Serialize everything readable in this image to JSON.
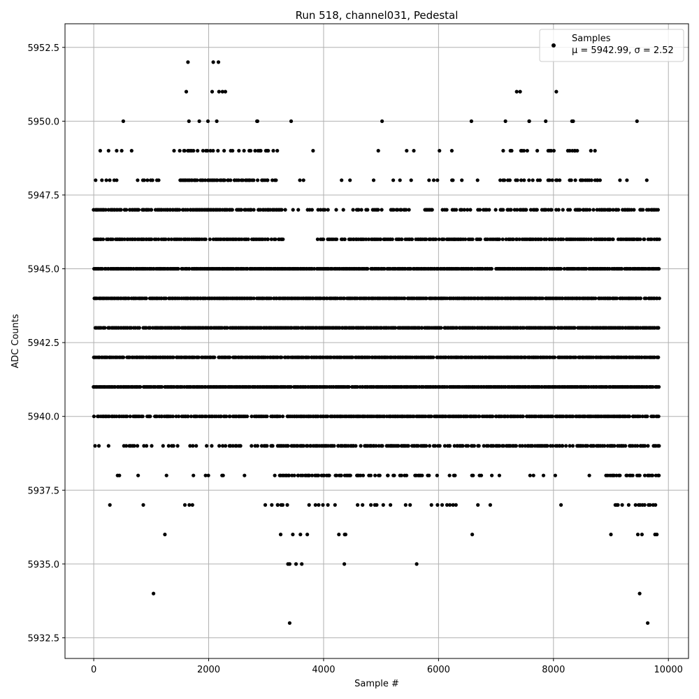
{
  "chart_data": {
    "type": "scatter",
    "title": "Run 518, channel031, Pedestal",
    "xlabel": "Sample #",
    "ylabel": "ADC Counts",
    "xlim": [
      -500,
      10350
    ],
    "ylim": [
      5931.8,
      5953.3
    ],
    "xticks": [
      0,
      2000,
      4000,
      6000,
      8000,
      10000
    ],
    "xtick_labels": [
      "0",
      "2000",
      "4000",
      "6000",
      "8000",
      "10000"
    ],
    "yticks": [
      5932.5,
      5935.0,
      5937.5,
      5940.0,
      5942.5,
      5945.0,
      5947.5,
      5950.0,
      5952.5
    ],
    "ytick_labels": [
      "5932.5",
      "5935.0",
      "5937.5",
      "5940.0",
      "5942.5",
      "5945.0",
      "5947.5",
      "5950.0",
      "5952.5"
    ],
    "grid": true,
    "legend_position": "top-right",
    "marker_color": "#000000",
    "series": [
      {
        "name": "Samples",
        "stats_label": "μ = 5942.99, σ = 2.52",
        "x_range": [
          0,
          9850
        ],
        "y_levels": [
          5944,
          5943,
          5942,
          5941,
          5945,
          5940,
          5946,
          5939,
          5947,
          5938,
          5948,
          5937,
          5949,
          5936,
          5950,
          5935,
          5951,
          5934,
          5952,
          5933
        ],
        "points": [
          [
            1040,
            5934
          ],
          [
            9500,
            5934
          ],
          [
            3410,
            5933
          ],
          [
            9640,
            5933
          ],
          [
            1640,
            5952
          ],
          [
            2080,
            5952
          ],
          [
            2170,
            5952
          ],
          [
            1610,
            5951
          ],
          [
            2060,
            5951
          ],
          [
            2180,
            5951
          ],
          [
            2240,
            5951
          ],
          [
            2290,
            5951
          ],
          [
            7360,
            5951
          ],
          [
            7420,
            5951
          ],
          [
            8050,
            5951
          ],
          [
            3380,
            5935
          ],
          [
            3410,
            5935
          ],
          [
            3520,
            5935
          ],
          [
            3620,
            5935
          ],
          [
            4360,
            5935
          ],
          [
            5620,
            5935
          ]
        ]
      }
    ]
  }
}
